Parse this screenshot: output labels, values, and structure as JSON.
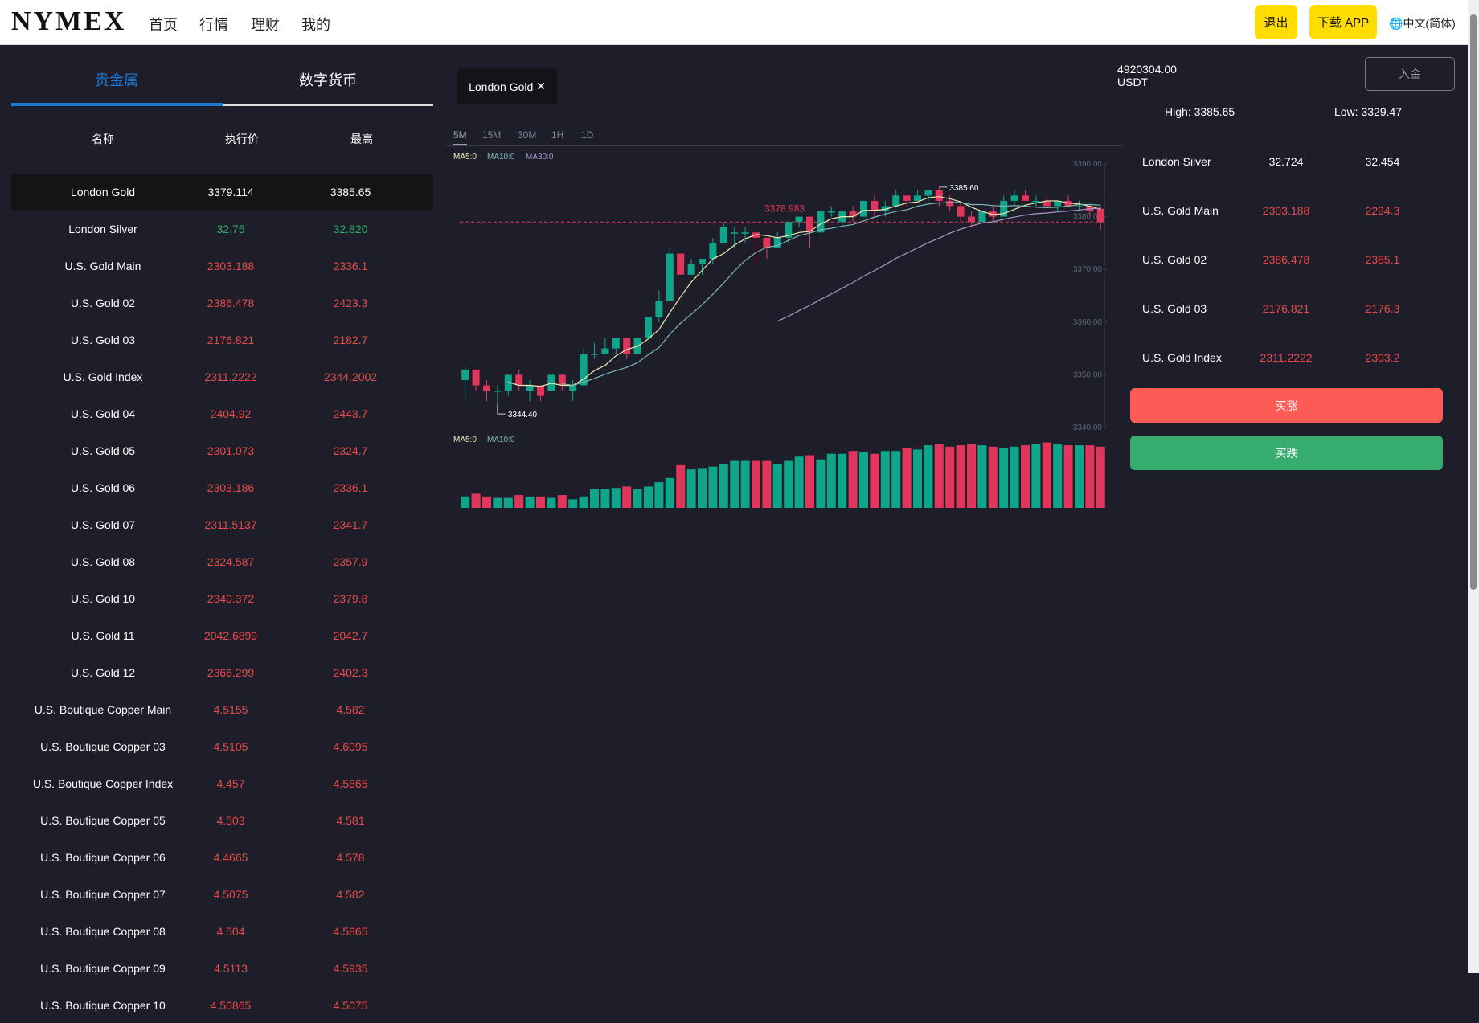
{
  "header": {
    "logo": "NYMEX",
    "nav": [
      "首页",
      "行情",
      "理财",
      "我的"
    ],
    "logout": "退出",
    "download": "下载 APP",
    "language": "中文(简体)"
  },
  "left": {
    "tabs": [
      "贵金属",
      "数字货币"
    ],
    "active_tab": 0,
    "columns": [
      "名称",
      "执行价",
      "最高"
    ],
    "rows": [
      {
        "name": "London Gold",
        "price": "3379.114",
        "high": "3385.65",
        "color": "#ffffff",
        "selected": true
      },
      {
        "name": "London Silver",
        "price": "32.75",
        "high": "32.820",
        "color": "#2eae6b"
      },
      {
        "name": "U.S. Gold Main",
        "price": "2303.188",
        "high": "2336.1",
        "color": "#e84a4a"
      },
      {
        "name": "U.S. Gold 02",
        "price": "2386.478",
        "high": "2423.3",
        "color": "#e84a4a"
      },
      {
        "name": "U.S. Gold 03",
        "price": "2176.821",
        "high": "2182.7",
        "color": "#e84a4a"
      },
      {
        "name": "U.S. Gold Index",
        "price": "2311.2222",
        "high": "2344.2002",
        "color": "#e84a4a"
      },
      {
        "name": "U.S. Gold 04",
        "price": "2404.92",
        "high": "2443.7",
        "color": "#e84a4a"
      },
      {
        "name": "U.S. Gold 05",
        "price": "2301.073",
        "high": "2324.7",
        "color": "#e84a4a"
      },
      {
        "name": "U.S. Gold 06",
        "price": "2303.186",
        "high": "2336.1",
        "color": "#e84a4a"
      },
      {
        "name": "U.S. Gold 07",
        "price": "2311.5137",
        "high": "2341.7",
        "color": "#e84a4a"
      },
      {
        "name": "U.S. Gold 08",
        "price": "2324.587",
        "high": "2357.9",
        "color": "#e84a4a"
      },
      {
        "name": "U.S. Gold 10",
        "price": "2340.372",
        "high": "2379.8",
        "color": "#e84a4a"
      },
      {
        "name": "U.S. Gold 11",
        "price": "2042.6899",
        "high": "2042.7",
        "color": "#e84a4a"
      },
      {
        "name": "U.S. Gold 12",
        "price": "2366.299",
        "high": "2402.3",
        "color": "#e84a4a"
      },
      {
        "name": "U.S. Boutique Copper Main",
        "price": "4.5155",
        "high": "4.582",
        "color": "#e84a4a"
      },
      {
        "name": "U.S. Boutique Copper 03",
        "price": "4.5105",
        "high": "4.6095",
        "color": "#e84a4a"
      },
      {
        "name": "U.S. Boutique Copper Index",
        "price": "4.457",
        "high": "4.5865",
        "color": "#e84a4a"
      },
      {
        "name": "U.S. Boutique Copper 05",
        "price": "4.503",
        "high": "4.581",
        "color": "#e84a4a"
      },
      {
        "name": "U.S. Boutique Copper 06",
        "price": "4.4665",
        "high": "4.578",
        "color": "#e84a4a"
      },
      {
        "name": "U.S. Boutique Copper 07",
        "price": "4.5075",
        "high": "4.582",
        "color": "#e84a4a"
      },
      {
        "name": "U.S. Boutique Copper 08",
        "price": "4.504",
        "high": "4.5865",
        "color": "#e84a4a"
      },
      {
        "name": "U.S. Boutique Copper 09",
        "price": "4.5113",
        "high": "4.5935",
        "color": "#e84a4a"
      },
      {
        "name": "U.S. Boutique Copper 10",
        "price": "4.50865",
        "high": "4.5075",
        "color": "#e84a4a"
      }
    ]
  },
  "center": {
    "symbol_tag": "London Gold",
    "close_glyph": "✕",
    "timeframes": [
      "5M",
      "15M",
      "30M",
      "1H",
      "1D"
    ],
    "active_timeframe": 0,
    "ma_labels": [
      "MA5:0",
      "MA10:0",
      "MA30:0"
    ],
    "vol_ma_labels": [
      "MA5:0",
      "MA10:0"
    ]
  },
  "chart_data": {
    "type": "candlestick",
    "ylim": [
      3340,
      3390
    ],
    "y_ticks": [
      "3390.00",
      "3380.00",
      "3370.00",
      "3360.00",
      "3350.00",
      "3340.00"
    ],
    "y_tick_values": [
      3390,
      3380,
      3370,
      3360,
      3350,
      3340
    ],
    "current_price": "3378.983",
    "max_label": "3385.60",
    "min_label": "3344.40",
    "colors": {
      "up": "#0ea58a",
      "down": "#e0365c",
      "ma5": "#ece8b2",
      "ma10": "#7fb6b8",
      "ma30": "#a995c9",
      "price_line": "#e0365c"
    },
    "ohlc": [
      [
        3349,
        3352,
        3345,
        3351
      ],
      [
        3351,
        3351,
        3347,
        3348
      ],
      [
        3348,
        3349,
        3345,
        3347
      ],
      [
        3347,
        3348,
        3344.4,
        3347
      ],
      [
        3347,
        3350,
        3346,
        3350
      ],
      [
        3350,
        3351,
        3347,
        3348
      ],
      [
        3347,
        3349,
        3345,
        3348
      ],
      [
        3348,
        3348,
        3345,
        3346
      ],
      [
        3347,
        3350,
        3347,
        3350
      ],
      [
        3350,
        3350,
        3347,
        3348
      ],
      [
        3347,
        3349,
        3345,
        3348
      ],
      [
        3348,
        3355,
        3348,
        3354
      ],
      [
        3354,
        3356,
        3353,
        3354
      ],
      [
        3354,
        3357,
        3354,
        3355
      ],
      [
        3355,
        3357,
        3354,
        3357
      ],
      [
        3357,
        3357,
        3353,
        3354
      ],
      [
        3354,
        3357,
        3354,
        3357
      ],
      [
        3357,
        3361,
        3357,
        3361
      ],
      [
        3361,
        3366,
        3360,
        3364
      ],
      [
        3364,
        3374,
        3364,
        3373
      ],
      [
        3373,
        3373,
        3369,
        3369
      ],
      [
        3369,
        3372,
        3369,
        3371
      ],
      [
        3371,
        3372,
        3369,
        3372
      ],
      [
        3372,
        3376,
        3371,
        3375
      ],
      [
        3375,
        3379,
        3375,
        3378
      ],
      [
        3377,
        3378,
        3374,
        3377
      ],
      [
        3377,
        3378,
        3375,
        3377
      ],
      [
        3377,
        3377,
        3371,
        3376
      ],
      [
        3376,
        3376,
        3372,
        3374
      ],
      [
        3374,
        3377,
        3374,
        3376
      ],
      [
        3376,
        3379,
        3375,
        3379
      ],
      [
        3379,
        3380,
        3378,
        3380
      ],
      [
        3380,
        3380,
        3374,
        3377
      ],
      [
        3377,
        3381,
        3377,
        3381
      ],
      [
        3381,
        3382,
        3380,
        3381
      ],
      [
        3379,
        3381,
        3378,
        3381
      ],
      [
        3381,
        3382,
        3379,
        3380
      ],
      [
        3380,
        3383,
        3380,
        3383
      ],
      [
        3383,
        3384,
        3380,
        3381
      ],
      [
        3381,
        3383,
        3380,
        3382
      ],
      [
        3382,
        3385,
        3382,
        3384
      ],
      [
        3384,
        3384,
        3382,
        3383
      ],
      [
        3383,
        3385,
        3383,
        3384
      ],
      [
        3384,
        3385,
        3383,
        3385
      ],
      [
        3385,
        3385.6,
        3382,
        3383
      ],
      [
        3383,
        3384,
        3381,
        3382
      ],
      [
        3382,
        3383,
        3379,
        3380
      ],
      [
        3380,
        3381,
        3378,
        3379
      ],
      [
        3379,
        3381,
        3379,
        3381
      ],
      [
        3381,
        3382,
        3379,
        3380
      ],
      [
        3380,
        3384,
        3380,
        3383
      ],
      [
        3383,
        3385,
        3382,
        3384
      ],
      [
        3384,
        3385,
        3383,
        3383
      ],
      [
        3383,
        3384,
        3382,
        3383
      ],
      [
        3383,
        3384,
        3382,
        3382
      ],
      [
        3382,
        3383,
        3381,
        3383
      ],
      [
        3383,
        3384,
        3382,
        3382
      ],
      [
        3382,
        3383,
        3381,
        3382
      ],
      [
        3382,
        3382,
        3380,
        3381
      ],
      [
        3381.5,
        3382,
        3377.5,
        3378.983
      ]
    ],
    "volume": [
      8,
      10,
      8,
      7,
      7,
      9,
      8,
      8,
      7,
      9,
      6,
      8,
      13,
      13,
      14,
      15,
      13,
      15,
      18,
      21,
      30,
      27,
      28,
      29,
      31,
      33,
      33,
      33,
      33,
      31,
      33,
      36,
      37,
      34,
      38,
      38,
      40,
      39,
      38,
      40,
      40,
      42,
      41,
      44,
      45,
      43,
      44,
      45,
      44,
      43,
      42,
      43,
      44,
      45,
      46,
      45,
      44,
      44,
      44,
      43
    ]
  },
  "right": {
    "balance": "4920304.00",
    "currency": "USDT",
    "deposit": "入金",
    "high_label": "High:",
    "high": "3385.65",
    "low_label": "Low:",
    "low": "3329.47",
    "rows": [
      {
        "name": "London Silver",
        "a": "32.724",
        "b": "32.454",
        "color": "#ffffff"
      },
      {
        "name": "U.S. Gold Main",
        "a": "2303.188",
        "b": "2294.3",
        "color": "#e84a4a"
      },
      {
        "name": "U.S. Gold 02",
        "a": "2386.478",
        "b": "2385.1",
        "color": "#e84a4a"
      },
      {
        "name": "U.S. Gold 03",
        "a": "2176.821",
        "b": "2176.3",
        "color": "#e84a4a"
      },
      {
        "name": "U.S. Gold Index",
        "a": "2311.2222",
        "b": "2303.2",
        "color": "#e84a4a"
      }
    ],
    "buy_up": "买涨",
    "buy_down": "买跌",
    "buy_up_color": "#fe5a56",
    "buy_down_color": "#36ac6e"
  }
}
